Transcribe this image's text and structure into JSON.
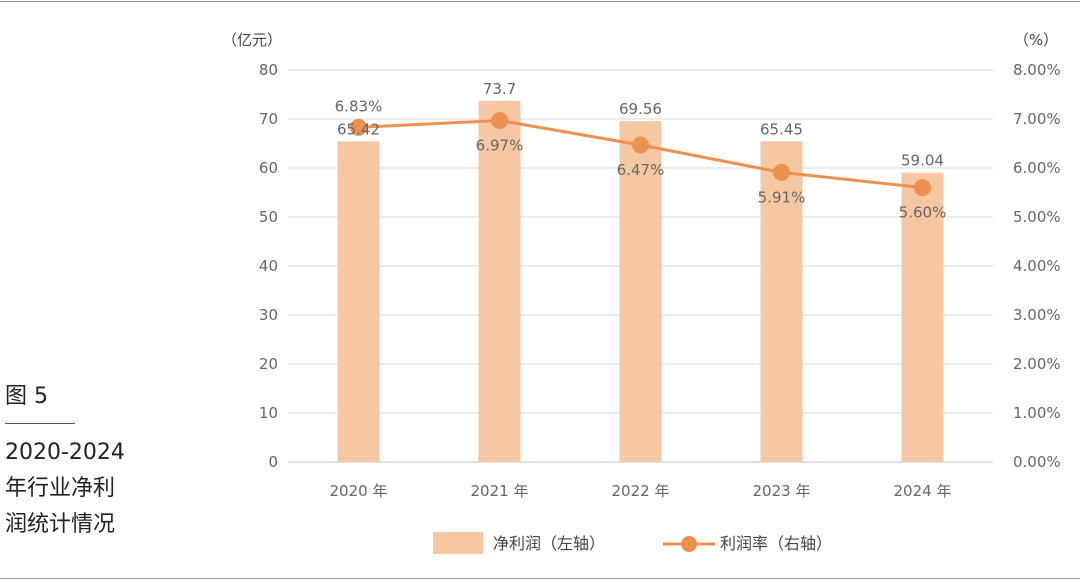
{
  "figure": {
    "label": "图 5",
    "caption_lines": [
      "2020-2024",
      "年行业净利",
      "润统计情况"
    ]
  },
  "colors": {
    "bar": "#f5c8a3",
    "line": "#ee9150",
    "grid": "#d9d9d9",
    "axis_text": "#666666"
  },
  "chart_data": {
    "type": "bar+line",
    "categories": [
      "2020 年",
      "2021 年",
      "2022 年",
      "2023 年",
      "2024 年"
    ],
    "series": [
      {
        "name": "净利润（左轴）",
        "type": "bar",
        "axis": "left",
        "values": [
          65.42,
          73.7,
          69.56,
          65.45,
          59.04
        ],
        "labels": [
          "65.42",
          "73.7",
          "69.56",
          "65.45",
          "59.04"
        ]
      },
      {
        "name": "利润率（右轴）",
        "type": "line",
        "axis": "right",
        "values": [
          6.83,
          6.97,
          6.47,
          5.91,
          5.6
        ],
        "labels": [
          "6.83%",
          "6.97%",
          "6.47%",
          "5.91%",
          "5.60%"
        ]
      }
    ],
    "left_axis": {
      "unit": "（亿元）",
      "range": [
        0,
        80
      ],
      "ticks": [
        "0",
        "10",
        "20",
        "30",
        "40",
        "50",
        "60",
        "70",
        "80"
      ]
    },
    "right_axis": {
      "unit": "（%）",
      "range": [
        0,
        8
      ],
      "ticks": [
        "0.00%",
        "1.00%",
        "2.00%",
        "3.00%",
        "4.00%",
        "5.00%",
        "6.00%",
        "7.00%",
        "8.00%"
      ]
    },
    "grid": true,
    "legend_position": "bottom-center"
  }
}
